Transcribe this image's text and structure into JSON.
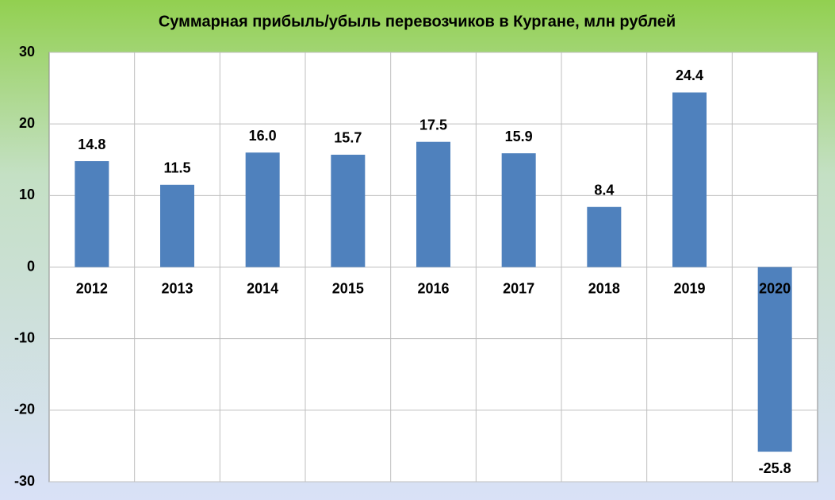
{
  "chart_data": {
    "type": "bar",
    "title": "Суммарная прибыль/убыль перевозчиков в Кургане, млн рублей",
    "categories": [
      "2012",
      "2013",
      "2014",
      "2015",
      "2016",
      "2017",
      "2018",
      "2019",
      "2020"
    ],
    "values": [
      14.8,
      11.5,
      16.0,
      15.7,
      17.5,
      15.9,
      8.4,
      24.4,
      -25.8
    ],
    "value_labels": [
      "14.8",
      "11.5",
      "16.0",
      "15.7",
      "17.5",
      "15.9",
      "8.4",
      "24.4",
      "-25.8"
    ],
    "color": "#4f81bd",
    "ylim": [
      -30,
      30
    ],
    "yticks": [
      -30,
      -20,
      -10,
      0,
      10,
      20,
      30
    ],
    "grid": true
  }
}
